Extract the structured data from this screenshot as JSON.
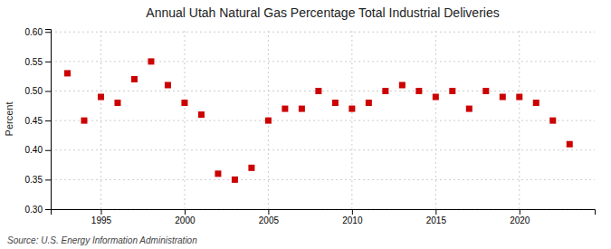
{
  "chart_data": {
    "type": "scatter",
    "title": "Annual Utah Natural Gas Percentage Total Industrial Deliveries",
    "ylabel": "Percent",
    "source": "Source: U.S. Energy Information Administration",
    "x": [
      1993,
      1994,
      1995,
      1996,
      1997,
      1998,
      1999,
      2000,
      2001,
      2002,
      2003,
      2004,
      2005,
      2006,
      2007,
      2008,
      2009,
      2010,
      2011,
      2012,
      2013,
      2014,
      2015,
      2016,
      2017,
      2018,
      2019,
      2020,
      2021,
      2022,
      2023
    ],
    "values": [
      0.53,
      0.45,
      0.49,
      0.48,
      0.52,
      0.55,
      0.51,
      0.48,
      0.46,
      0.36,
      0.35,
      0.37,
      0.45,
      0.47,
      0.47,
      0.5,
      0.48,
      0.47,
      0.48,
      0.5,
      0.51,
      0.5,
      0.49,
      0.5,
      0.47,
      0.5,
      0.49,
      0.49,
      0.48,
      0.45,
      0.41
    ],
    "color": "#cc0000",
    "marker": "square",
    "xlim": [
      1992.0,
      2024.5
    ],
    "ylim": [
      0.3,
      0.605
    ],
    "xticks": [
      1995,
      2000,
      2005,
      2010,
      2015,
      2020
    ],
    "yticks": [
      {
        "value": 0.3,
        "label": "0.30"
      },
      0.35,
      {
        "value": 0.4,
        "label": "0.40"
      },
      0.45,
      {
        "value": 0.5,
        "label": "0.50"
      },
      0.55,
      {
        "value": 0.6,
        "label": "0.60"
      }
    ],
    "grid": true
  }
}
